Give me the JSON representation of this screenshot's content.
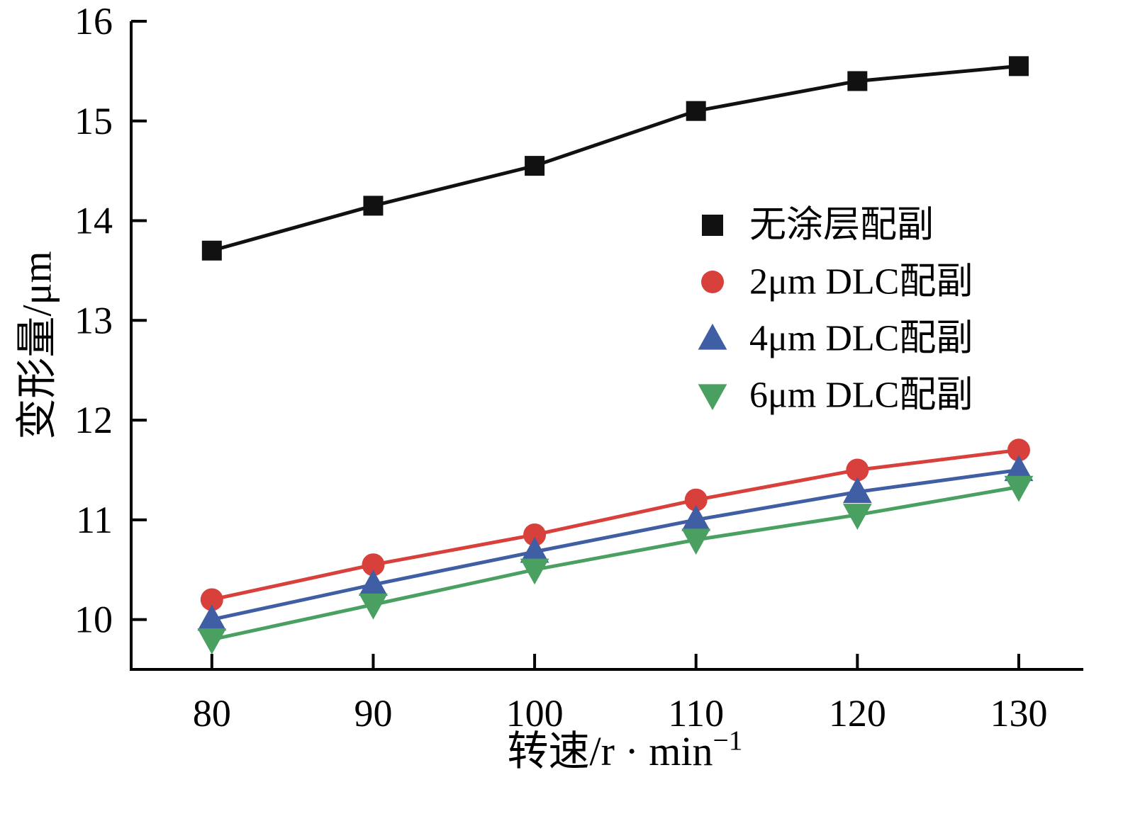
{
  "figure": {
    "background": "#ffffff",
    "axis_color": "#000000"
  },
  "chart_data": {
    "type": "line",
    "title": "",
    "xlabel": "转速/r·min⁻¹",
    "xlabel_main": "转速/r · min",
    "xlabel_sup": "−1",
    "ylabel": "变形量/μm",
    "x": [
      80,
      90,
      100,
      110,
      120,
      130
    ],
    "xticks": [
      80,
      90,
      100,
      110,
      120,
      130
    ],
    "yticks": [
      10,
      11,
      12,
      13,
      14,
      15,
      16
    ],
    "xlim": [
      75,
      134
    ],
    "ylim": [
      9.5,
      16
    ],
    "grid": false,
    "legend_position": "center-right",
    "series": [
      {
        "name": "无涂层配副",
        "marker": "square",
        "color": "#111111",
        "values": [
          13.7,
          14.15,
          14.55,
          15.1,
          15.4,
          15.55
        ]
      },
      {
        "name": "2μm DLC配副",
        "marker": "circle",
        "color": "#d8403c",
        "values": [
          10.2,
          10.55,
          10.85,
          11.2,
          11.5,
          11.7
        ]
      },
      {
        "name": "4μm DLC配副",
        "marker": "triangle-up",
        "color": "#3f5ea3",
        "values": [
          10.0,
          10.35,
          10.68,
          11.0,
          11.28,
          11.5
        ]
      },
      {
        "name": "6μm DLC配副",
        "marker": "triangle-down",
        "color": "#4aa061",
        "values": [
          9.8,
          10.15,
          10.5,
          10.8,
          11.05,
          11.33
        ]
      }
    ]
  }
}
